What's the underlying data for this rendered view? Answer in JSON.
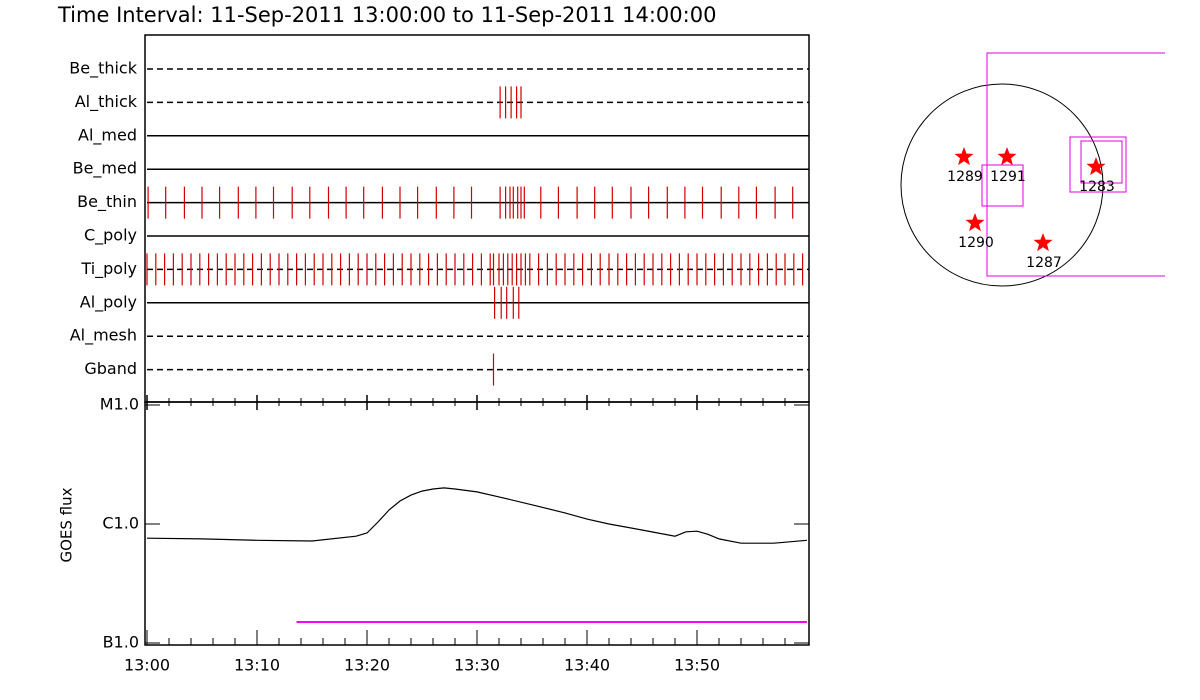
{
  "chart_data": [
    {
      "type": "event",
      "title": "Time Interval: 11-Sep-2011 13:00:00 to 11-Sep-2011 14:00:00",
      "categories": [
        "Be_thick",
        "Al_thick",
        "Al_med",
        "Be_med",
        "Be_thin",
        "C_poly",
        "Ti_poly",
        "Al_poly",
        "Al_mesh",
        "Gband"
      ],
      "line_styles": [
        "dashed",
        "dashed",
        "solid",
        "solid",
        "solid",
        "solid",
        "dashed",
        "solid",
        "dashed",
        "dashed"
      ],
      "color": "#d00000",
      "xlim": [
        0,
        60
      ],
      "events": [
        [],
        [
          32.1,
          32.6,
          33.1,
          33.6,
          34.0
        ],
        [],
        [],
        [
          0.1,
          1.7,
          3.4,
          5.0,
          6.6,
          8.3,
          9.9,
          11.5,
          13.2,
          14.8,
          16.5,
          18.1,
          19.7,
          21.4,
          23.0,
          24.6,
          26.3,
          27.9,
          29.5,
          32.1,
          32.6,
          33.0,
          33.3,
          33.7,
          34.0,
          34.3,
          35.8,
          37.4,
          39.1,
          40.7,
          42.3,
          44.0,
          45.6,
          47.3,
          48.9,
          50.5,
          52.2,
          53.8,
          55.4,
          57.1,
          58.7
        ],
        [],
        [
          0.0,
          0.8,
          1.6,
          2.4,
          3.2,
          4.0,
          4.8,
          5.6,
          6.4,
          7.2,
          8.0,
          8.8,
          9.6,
          10.4,
          11.2,
          12.0,
          12.8,
          13.6,
          14.4,
          15.2,
          16.0,
          16.8,
          17.6,
          18.4,
          19.2,
          20.0,
          20.8,
          21.6,
          22.4,
          23.2,
          24.0,
          24.8,
          25.6,
          26.4,
          27.2,
          28.0,
          28.8,
          29.6,
          30.4,
          31.2,
          31.5,
          32.0,
          32.4,
          32.8,
          33.2,
          33.6,
          34.0,
          34.4,
          34.8,
          35.6,
          36.4,
          37.2,
          38.0,
          38.8,
          39.6,
          40.4,
          41.2,
          42.0,
          42.8,
          43.6,
          44.4,
          45.2,
          46.0,
          46.8,
          47.6,
          48.4,
          49.2,
          50.0,
          50.8,
          51.6,
          52.4,
          53.2,
          54.0,
          54.8,
          55.6,
          56.4,
          57.2,
          58.0,
          58.8,
          59.6
        ],
        [
          31.6,
          32.2,
          32.7,
          33.3,
          33.8
        ],
        [],
        [
          31.5
        ]
      ]
    },
    {
      "type": "line",
      "ylabel": "GOES flux",
      "log_scale": true,
      "xlim": [
        0,
        60
      ],
      "ylim": [
        1e-07,
        1e-05
      ],
      "yticks": [
        {
          "value": 1e-07,
          "label": "B1.0"
        },
        {
          "value": 1e-06,
          "label": "C1.0"
        },
        {
          "value": 1e-05,
          "label": "M1.0"
        }
      ],
      "xticks": [
        {
          "value": 0,
          "label": "13:00"
        },
        {
          "value": 10,
          "label": "13:10"
        },
        {
          "value": 20,
          "label": "13:20"
        },
        {
          "value": 30,
          "label": "13:30"
        },
        {
          "value": 40,
          "label": "13:40"
        },
        {
          "value": 50,
          "label": "13:50"
        }
      ],
      "xminorticks": [
        2,
        4,
        6,
        8,
        12,
        14,
        16,
        18,
        22,
        24,
        26,
        28,
        32,
        34,
        36,
        38,
        42,
        44,
        46,
        48,
        52,
        54,
        56,
        58
      ],
      "series": [
        {
          "color": "#000000",
          "x": [
            0,
            5,
            10,
            15,
            19,
            20,
            21,
            22,
            23,
            24,
            25,
            26,
            27,
            28,
            30,
            32,
            35,
            38,
            40,
            42,
            45,
            48,
            49,
            50,
            51,
            52,
            54,
            57,
            60
          ],
          "values": [
            7.6e-07,
            7.5e-07,
            7.3e-07,
            7.2e-07,
            7.9e-07,
            8.4e-07,
            1.04e-06,
            1.31e-06,
            1.56e-06,
            1.75e-06,
            1.89e-06,
            1.97e-06,
            2.01e-06,
            1.97e-06,
            1.86e-06,
            1.69e-06,
            1.45e-06,
            1.24e-06,
            1.1e-06,
            1e-06,
            8.9e-07,
            7.9e-07,
            8.6e-07,
            8.7e-07,
            8.2e-07,
            7.5e-07,
            6.9e-07,
            6.9e-07,
            7.3e-07
          ]
        },
        {
          "color": "#ff00ff",
          "x": [
            13.6,
            60
          ],
          "values": [
            1.5e-07,
            1.5e-07
          ]
        }
      ]
    }
  ],
  "map": {
    "regions": [
      "1289",
      "1291",
      "1283",
      "1290",
      "1287"
    ]
  }
}
